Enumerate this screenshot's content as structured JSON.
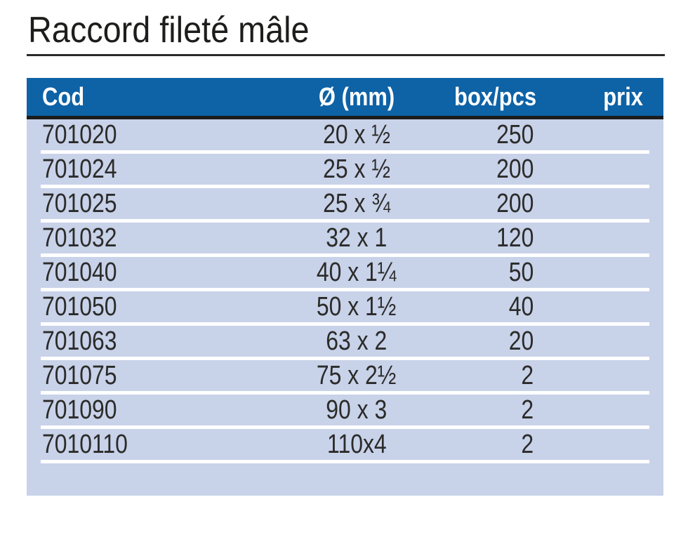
{
  "page": {
    "title": "Raccord fileté mâle"
  },
  "colors": {
    "header_bg": "#0e62a6",
    "header_text": "#ffffff",
    "row_bg": "#c8d2e9",
    "divider_bar": "#1c1c1c",
    "row_separator": "#ffffff",
    "title_text": "#1d1d1b",
    "title_rule": "#2a2a28"
  },
  "table": {
    "headers": {
      "cod": "Cod",
      "diameter": "Ø (mm)",
      "box": "box/pcs",
      "prix": "prix"
    },
    "rows": [
      {
        "cod": "701020",
        "diameter": "20 x ½",
        "box": "250",
        "prix": ""
      },
      {
        "cod": "701024",
        "diameter": "25 x ½",
        "box": "200",
        "prix": ""
      },
      {
        "cod": "701025",
        "diameter": "25 x ¾",
        "box": "200",
        "prix": ""
      },
      {
        "cod": "701032",
        "diameter": "32 x 1",
        "box": "120",
        "prix": ""
      },
      {
        "cod": "701040",
        "diameter": "40 x 1¼",
        "box": "50",
        "prix": ""
      },
      {
        "cod": "701050",
        "diameter": "50 x 1½",
        "box": "40",
        "prix": ""
      },
      {
        "cod": "701063",
        "diameter": "63 x 2",
        "box": "20",
        "prix": ""
      },
      {
        "cod": "701075",
        "diameter": "75 x 2½",
        "box": "2",
        "prix": ""
      },
      {
        "cod": "701090",
        "diameter": "90 x 3",
        "box": "2",
        "prix": ""
      },
      {
        "cod": "7010110",
        "diameter": "110x4",
        "box": "2",
        "prix": ""
      }
    ]
  }
}
